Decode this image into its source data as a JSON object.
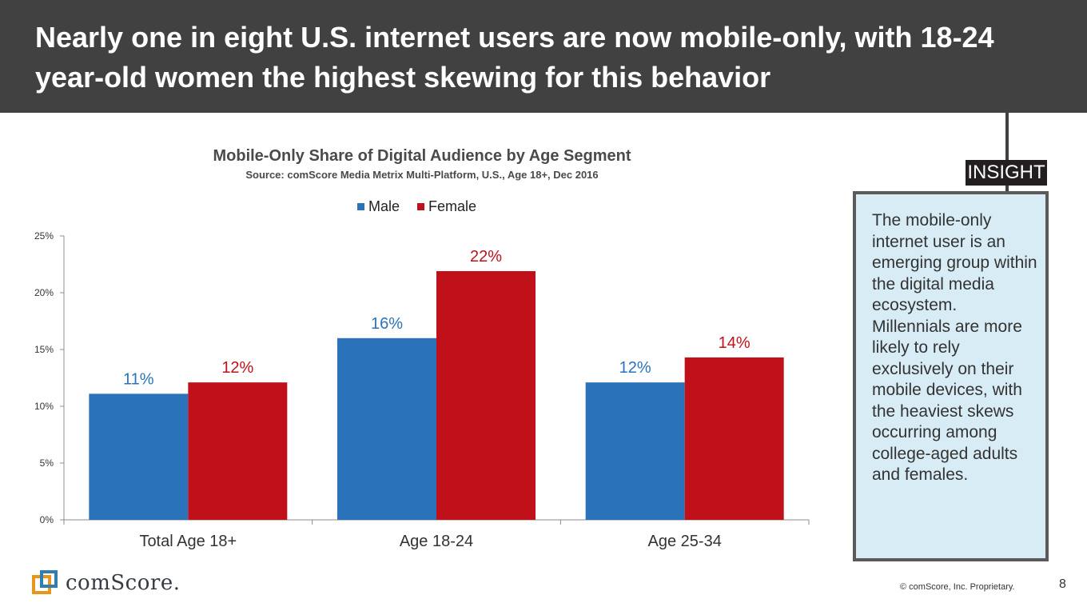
{
  "slide": {
    "title": "Nearly one in eight U.S. internet users are now mobile-only, with 18-24 year-old women the highest skewing for this behavior",
    "insight_label": "INSIGHT",
    "insight_text": "The mobile-only internet user is an emerging group within the digital media ecosystem. Millennials are more likely to rely exclusively on their mobile devices, with the heaviest skews occurring among college-aged adults and females.",
    "logo_text": "comScore.",
    "copyright": "© comScore, Inc. Proprietary.",
    "page_number": "8"
  },
  "colors": {
    "header_bg": "#414141",
    "male": "#2a73ba",
    "female": "#c0111b",
    "insight_bg": "#d8ecf5",
    "logo_orange": "#e8951d",
    "logo_blue": "#2f7fb0"
  },
  "chart_data": {
    "type": "bar",
    "title": "Mobile-Only Share of Digital Audience by Age Segment",
    "subtitle": "Source: comScore Media Metrix Multi-Platform, U.S., Age 18+, Dec 2016",
    "categories": [
      "Total Age 18+",
      "Age 18-24",
      "Age 25-34"
    ],
    "series": [
      {
        "name": "Male",
        "values": [
          11.1,
          16.0,
          12.1
        ],
        "labels": [
          "11%",
          "16%",
          "12%"
        ],
        "color": "#2a73ba"
      },
      {
        "name": "Female",
        "values": [
          12.1,
          21.9,
          14.3
        ],
        "labels": [
          "12%",
          "22%",
          "14%"
        ],
        "color": "#c0111b"
      }
    ],
    "ylim": [
      0,
      25
    ],
    "yticks": [
      0,
      5,
      10,
      15,
      20,
      25
    ],
    "ytick_labels": [
      "0%",
      "5%",
      "10%",
      "15%",
      "20%",
      "25%"
    ],
    "legend_position": "top",
    "grid": false
  }
}
